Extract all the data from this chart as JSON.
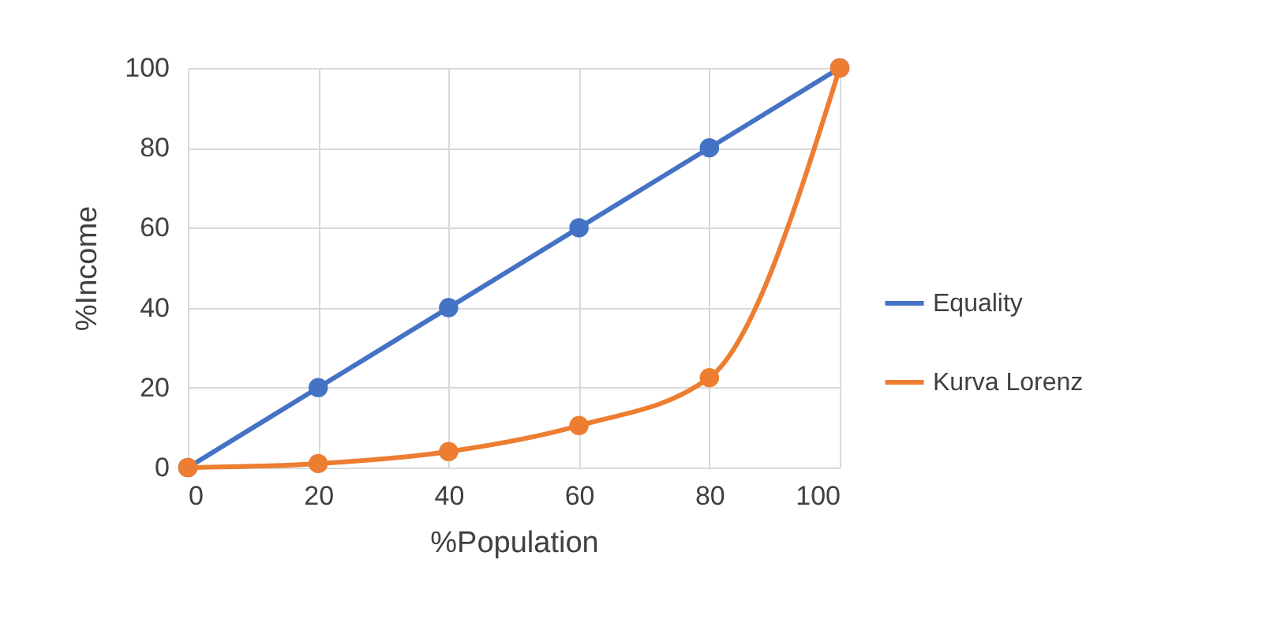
{
  "chart_data": {
    "type": "line",
    "xlabel": "%Population",
    "ylabel": "%Income",
    "x": [
      0,
      20,
      40,
      60,
      80,
      100
    ],
    "series": [
      {
        "name": "Equality",
        "color": "#4472c4",
        "values": [
          0,
          20,
          40,
          60,
          80,
          100
        ]
      },
      {
        "name": "Kurva Lorenz",
        "color": "#ed7d31",
        "values": [
          0,
          1,
          4,
          10.5,
          22.5,
          100
        ]
      }
    ],
    "xlim": [
      0,
      100
    ],
    "xticks": [
      0,
      20,
      40,
      60,
      80,
      100
    ],
    "ylim": [
      0,
      100
    ],
    "yticks": [
      0,
      20,
      40,
      60,
      80,
      100
    ],
    "grid": true,
    "legend": "right",
    "marker": "circle",
    "line_style": "solid"
  }
}
